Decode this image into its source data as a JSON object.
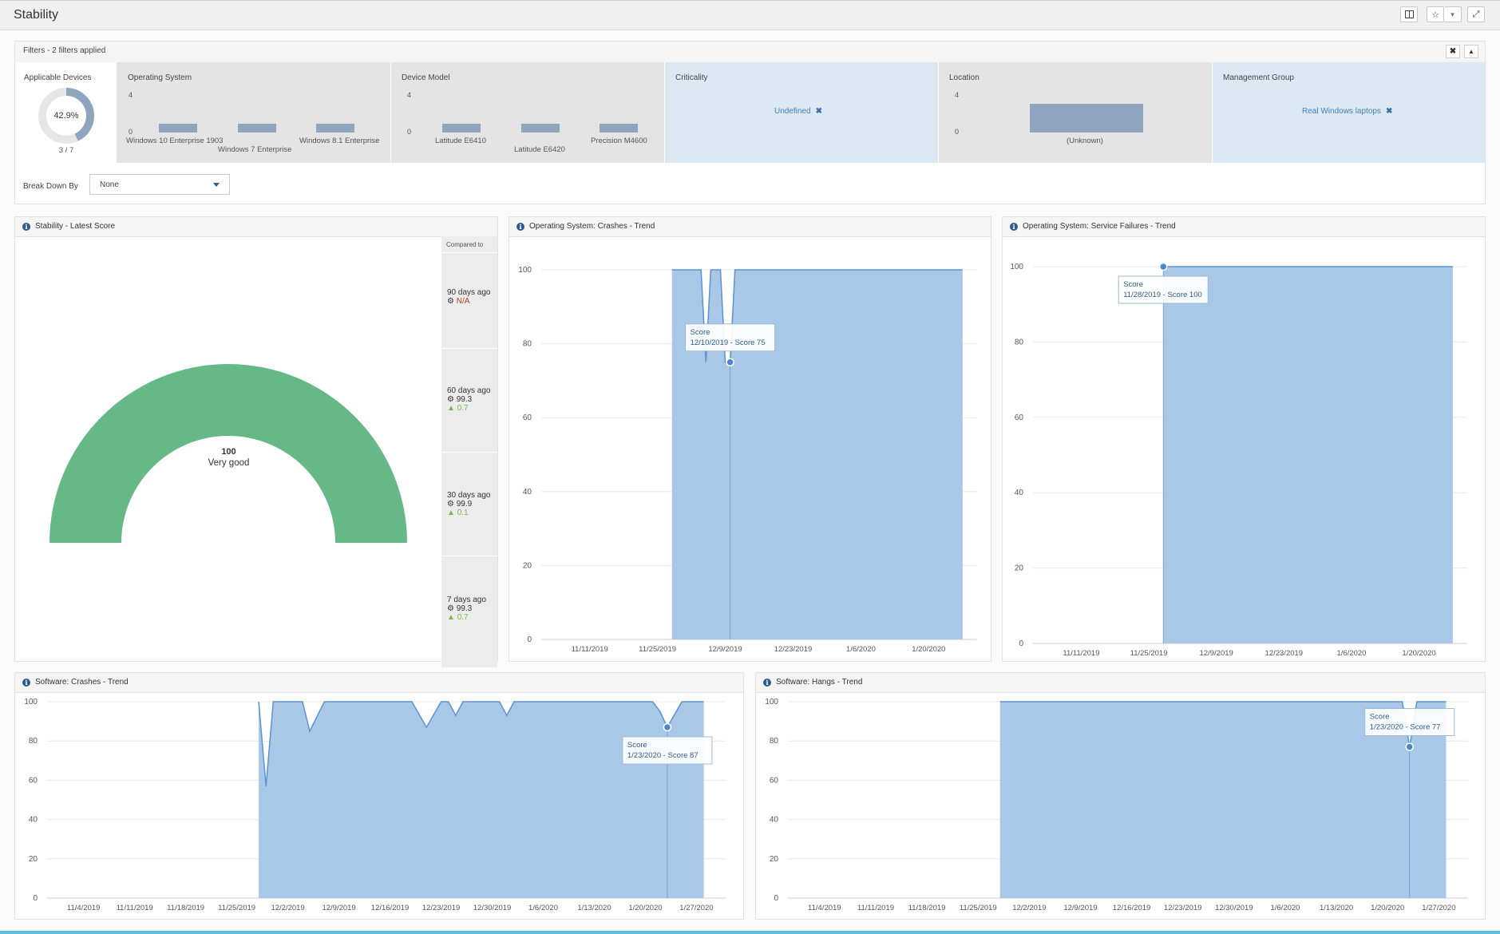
{
  "page": {
    "title": "Stability"
  },
  "filters": {
    "title": "Filters - 2 filters applied",
    "applicable_devices": {
      "label": "Applicable Devices",
      "percent_text": "42.9%",
      "percent": 42.9,
      "count_text": "3 / 7"
    },
    "operating_system": {
      "label": "Operating System",
      "y_max": "4",
      "y_min": "0",
      "bars": [
        {
          "label": "Windows 10 Enterprise 1903",
          "value": 1
        },
        {
          "label": "Windows 7 Enterprise",
          "value": 1
        },
        {
          "label": "Windows 8.1 Enterprise",
          "value": 1
        }
      ]
    },
    "device_model": {
      "label": "Device Model",
      "y_max": "4",
      "y_min": "0",
      "bars": [
        {
          "label": "Latitude E6410",
          "value": 1
        },
        {
          "label": "Latitude E6420",
          "value": 1
        },
        {
          "label": "Precision M4600",
          "value": 1
        }
      ]
    },
    "criticality": {
      "label": "Criticality",
      "chip": "Undefined"
    },
    "location": {
      "label": "Location",
      "y_max": "4",
      "y_min": "0",
      "bars": [
        {
          "label": "(Unknown)",
          "value": 3
        }
      ]
    },
    "management_group": {
      "label": "Management Group",
      "chip": "Real Windows laptops"
    },
    "break_down": {
      "label": "Break Down By",
      "value": "None"
    }
  },
  "latest_score": {
    "title": "Stability - Latest Score",
    "score": "100",
    "rating": "Very good",
    "gauge_color": "#66b987",
    "compared_to": "Compared to",
    "comparisons": [
      {
        "period": "90 days ago",
        "value": "N/A",
        "delta": ""
      },
      {
        "period": "60 days ago",
        "value": "99.3",
        "delta": "0.7"
      },
      {
        "period": "30 days ago",
        "value": "99.9",
        "delta": "0.1"
      },
      {
        "period": "7 days ago",
        "value": "99.3",
        "delta": "0.7"
      }
    ]
  },
  "chart_data": [
    {
      "id": "os_crashes",
      "type": "area",
      "title": "Operating System: Crashes - Trend",
      "ylim": [
        0,
        100
      ],
      "yticks": [
        0,
        20,
        40,
        60,
        80,
        100
      ],
      "xlim": [
        "2019-11-01",
        "2020-01-30"
      ],
      "xticks": [
        "11/11/2019",
        "11/25/2019",
        "12/9/2019",
        "12/23/2019",
        "1/6/2020",
        "1/20/2020"
      ],
      "points": [
        [
          "2019-11-28",
          100
        ],
        [
          "2019-12-04",
          100
        ],
        [
          "2019-12-05",
          75
        ],
        [
          "2019-12-06",
          100
        ],
        [
          "2019-12-08",
          100
        ],
        [
          "2019-12-09",
          75
        ],
        [
          "2019-12-10",
          75
        ],
        [
          "2019-12-11",
          100
        ],
        [
          "2020-01-27",
          100
        ]
      ],
      "tooltip": {
        "title": "Score",
        "text": "12/10/2019 - Score 75",
        "date": "2019-12-10",
        "value": 75
      }
    },
    {
      "id": "os_service_failures",
      "type": "area",
      "title": "Operating System: Service Failures - Trend",
      "ylim": [
        0,
        100
      ],
      "yticks": [
        0,
        20,
        40,
        60,
        80,
        100
      ],
      "xlim": [
        "2019-11-01",
        "2020-01-30"
      ],
      "xticks": [
        "11/11/2019",
        "11/25/2019",
        "12/9/2019",
        "12/23/2019",
        "1/6/2020",
        "1/20/2020"
      ],
      "points": [
        [
          "2019-11-28",
          100
        ],
        [
          "2020-01-27",
          100
        ]
      ],
      "tooltip": {
        "title": "Score",
        "text": "11/28/2019 - Score 100",
        "date": "2019-11-28",
        "value": 100
      }
    },
    {
      "id": "sw_crashes",
      "type": "area",
      "title": "Software: Crashes - Trend",
      "ylim": [
        0,
        100
      ],
      "yticks": [
        0,
        20,
        40,
        60,
        80,
        100
      ],
      "xlim": [
        "2019-10-30",
        "2020-01-31"
      ],
      "xticks": [
        "11/4/2019",
        "11/11/2019",
        "11/18/2019",
        "11/25/2019",
        "12/2/2019",
        "12/9/2019",
        "12/16/2019",
        "12/23/2019",
        "12/30/2019",
        "1/6/2020",
        "1/13/2020",
        "1/20/2020",
        "1/27/2020"
      ],
      "points": [
        [
          "2019-11-28",
          100
        ],
        [
          "2019-11-29",
          57
        ],
        [
          "2019-11-30",
          100
        ],
        [
          "2019-12-04",
          100
        ],
        [
          "2019-12-05",
          85
        ],
        [
          "2019-12-07",
          100
        ],
        [
          "2019-12-19",
          100
        ],
        [
          "2019-12-21",
          87
        ],
        [
          "2019-12-23",
          100
        ],
        [
          "2019-12-24",
          100
        ],
        [
          "2019-12-25",
          93
        ],
        [
          "2019-12-26",
          100
        ],
        [
          "2019-12-31",
          100
        ],
        [
          "2020-01-01",
          93
        ],
        [
          "2020-01-02",
          100
        ],
        [
          "2020-01-21",
          100
        ],
        [
          "2020-01-22",
          95
        ],
        [
          "2020-01-23",
          87
        ],
        [
          "2020-01-25",
          100
        ],
        [
          "2020-01-28",
          100
        ]
      ],
      "tooltip": {
        "title": "Score",
        "text": "1/23/2020 - Score 87",
        "date": "2020-01-23",
        "value": 87
      }
    },
    {
      "id": "sw_hangs",
      "type": "area",
      "title": "Software: Hangs - Trend",
      "ylim": [
        0,
        100
      ],
      "yticks": [
        0,
        20,
        40,
        60,
        80,
        100
      ],
      "xlim": [
        "2019-10-30",
        "2020-01-31"
      ],
      "xticks": [
        "11/4/2019",
        "11/11/2019",
        "11/18/2019",
        "11/25/2019",
        "12/2/2019",
        "12/9/2019",
        "12/16/2019",
        "12/23/2019",
        "12/30/2019",
        "1/6/2020",
        "1/13/2020",
        "1/20/2020",
        "1/27/2020"
      ],
      "points": [
        [
          "2019-11-28",
          100
        ],
        [
          "2020-01-22",
          100
        ],
        [
          "2020-01-23",
          77
        ],
        [
          "2020-01-24",
          100
        ],
        [
          "2020-01-28",
          100
        ]
      ],
      "tooltip": {
        "title": "Score",
        "text": "1/23/2020 - Score 77",
        "date": "2020-01-23",
        "value": 77
      }
    }
  ],
  "colors": {
    "area_fill": "#a9c7e6",
    "area_line": "#5b93cf",
    "grid": "#e8e8e8",
    "filter_bar": "#8fa5be",
    "accent": "#3f7fbf"
  }
}
